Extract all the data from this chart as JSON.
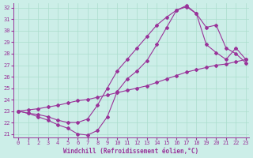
{
  "xlabel": "Windchill (Refroidissement éolien,°C)",
  "xlim": [
    -0.5,
    23.3
  ],
  "ylim": [
    20.7,
    32.4
  ],
  "yticks": [
    21,
    22,
    23,
    24,
    25,
    26,
    27,
    28,
    29,
    30,
    31,
    32
  ],
  "xticks": [
    0,
    1,
    2,
    3,
    4,
    5,
    6,
    7,
    8,
    9,
    10,
    11,
    12,
    13,
    14,
    15,
    16,
    17,
    18,
    19,
    20,
    21,
    22,
    23
  ],
  "background_color": "#cceee8",
  "grid_color": "#aaddcc",
  "line_color": "#993399",
  "line1_x": [
    0,
    1,
    2,
    3,
    4,
    5,
    6,
    7,
    8,
    9,
    10,
    11,
    12,
    13,
    14,
    15,
    16,
    17,
    18,
    19,
    20,
    21,
    22,
    23
  ],
  "line1_y": [
    23.0,
    22.8,
    22.5,
    22.2,
    21.8,
    21.5,
    21.0,
    20.9,
    21.3,
    22.5,
    24.7,
    25.8,
    26.5,
    27.4,
    28.8,
    30.3,
    31.8,
    32.2,
    31.5,
    30.3,
    30.5,
    28.5,
    28.0,
    27.2
  ],
  "line2_x": [
    0,
    1,
    2,
    3,
    4,
    5,
    6,
    7,
    8,
    9,
    10,
    11,
    12,
    13,
    14,
    15,
    16,
    17,
    18,
    19,
    20,
    21,
    22,
    23
  ],
  "line2_y": [
    23.0,
    23.1,
    23.2,
    23.35,
    23.5,
    23.7,
    23.9,
    24.0,
    24.2,
    24.4,
    24.6,
    24.8,
    25.0,
    25.2,
    25.5,
    25.8,
    26.1,
    26.4,
    26.6,
    26.8,
    27.0,
    27.1,
    27.3,
    27.5
  ],
  "line3_x": [
    0,
    1,
    2,
    3,
    4,
    5,
    6,
    7,
    8,
    9,
    10,
    11,
    12,
    13,
    14,
    15,
    16,
    17,
    18,
    19,
    20,
    21,
    22,
    23
  ],
  "line3_y": [
    23.0,
    22.8,
    22.7,
    22.5,
    22.2,
    22.0,
    22.0,
    22.3,
    23.5,
    25.0,
    26.5,
    27.5,
    28.5,
    29.5,
    30.5,
    31.2,
    31.8,
    32.1,
    31.5,
    28.8,
    28.1,
    27.5,
    28.5,
    27.5
  ]
}
